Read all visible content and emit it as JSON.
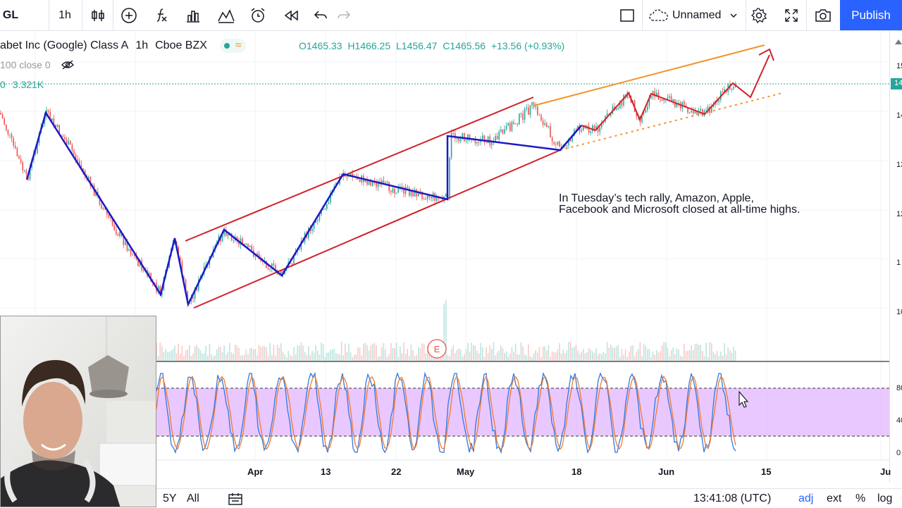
{
  "toolbar": {
    "symbol": "GL",
    "interval": "1h",
    "layout_name": "Unnamed",
    "publish_label": "Publish"
  },
  "legend": {
    "name": "abet Inc (Google) Class A",
    "interval": "1h",
    "exchange": "Cboe BZX",
    "open": "O1465.33",
    "high": "H1466.25",
    "low": "L1456.47",
    "close": "C1465.56",
    "change": "+13.56 (+0.93%)",
    "ma_label": "100 close 0",
    "volume_label": "0",
    "volume_value": "3.321K"
  },
  "price_scale": {
    "labels": [
      "15",
      "14",
      "14",
      "13",
      "13",
      "12",
      "1",
      "10",
      "80",
      "40",
      "0"
    ],
    "last_price_label": "14"
  },
  "time_axis": {
    "labels": [
      "Apr",
      "13",
      "22",
      "May",
      "18",
      "Jun",
      "15",
      "Ju"
    ]
  },
  "annotation": {
    "text": "In Tuesday’s tech rally, Amazon, Apple,\nFacebook and Microsoft closed at all-time highs."
  },
  "earnings_marker": "E",
  "bottom_bar": {
    "range_5y": "5Y",
    "range_all": "All",
    "clock": "13:41:08 (UTC)",
    "adj": "adj",
    "ext": "ext",
    "percent": "%",
    "log": "log"
  },
  "colors": {
    "accent": "#2962ff",
    "up": "#26a69a",
    "down": "#ef5350",
    "channel": "#d0202a",
    "wave": "#1a1ac8",
    "trend_orange": "#f0952a",
    "stoch_band": "#e1b5ff"
  }
}
